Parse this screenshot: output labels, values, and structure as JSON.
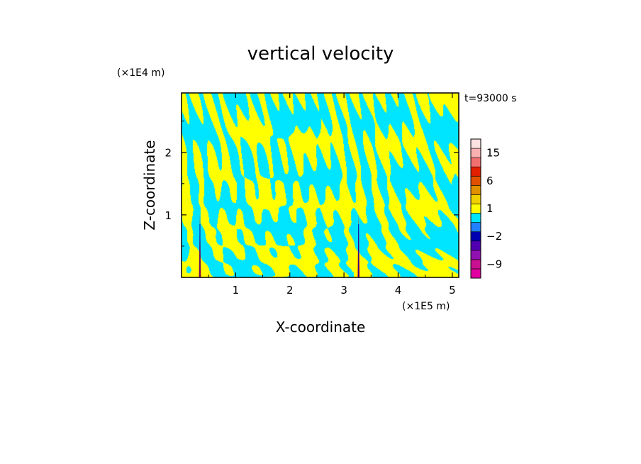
{
  "chart_data": {
    "type": "heatmap",
    "title": "vertical velocity",
    "xlabel": "X-coordinate",
    "ylabel": "Z-coordinate",
    "x_unit": "(×1E5 m)",
    "y_unit": "(×1E4 m)",
    "time_label": "t=93000 s",
    "xlim": [
      0,
      5.12
    ],
    "ylim": [
      0,
      2.95
    ],
    "x_ticks": [
      1,
      2,
      3,
      4,
      5
    ],
    "x_tick_labels": [
      "1",
      "2",
      "3",
      "4",
      "5"
    ],
    "y_ticks": [
      1,
      2
    ],
    "y_tick_labels": [
      "1",
      "2"
    ],
    "field_colors": {
      "positive": "#ffff00",
      "negative": "#00e5ff"
    },
    "updraft_cores_x": [
      0.34,
      3.27
    ],
    "colorbar": {
      "levels": [
        -12,
        -9,
        -6,
        -4,
        -2,
        -1,
        0,
        1,
        2,
        3,
        6,
        9,
        12,
        15,
        18,
        21
      ],
      "colors": [
        "#e000a0",
        "#c81090",
        "#9010b0",
        "#5000b0",
        "#0000b0",
        "#2080ff",
        "#00e5ff",
        "#ffff00",
        "#f0d000",
        "#e09000",
        "#e05000",
        "#e02000",
        "#f07070",
        "#f8b0b0",
        "#fde0e0"
      ],
      "tick_values": [
        15,
        6,
        1,
        -2,
        -9
      ],
      "tick_labels": [
        "15",
        "6",
        "1",
        "−2",
        "−9"
      ]
    }
  }
}
